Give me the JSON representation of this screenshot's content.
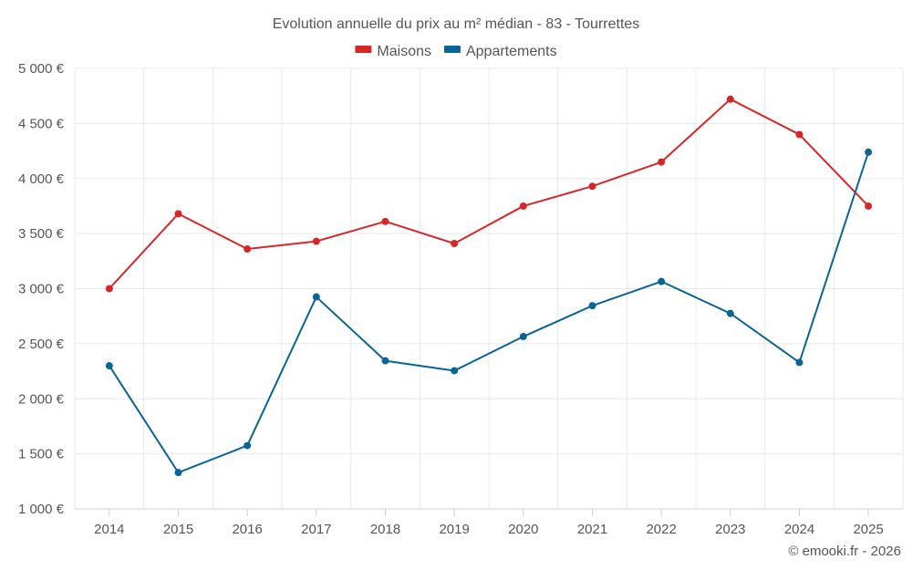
{
  "chart_data": {
    "type": "line",
    "title": "Evolution annuelle du prix au m² médian - 83 - Tourrettes",
    "categories": [
      "2014",
      "2015",
      "2016",
      "2017",
      "2018",
      "2019",
      "2020",
      "2021",
      "2022",
      "2023",
      "2024",
      "2025"
    ],
    "series": [
      {
        "name": "Maisons",
        "color": "#d62728",
        "values": [
          3000,
          3680,
          3360,
          3430,
          3610,
          3410,
          3750,
          3930,
          4150,
          4720,
          4400,
          3750
        ]
      },
      {
        "name": "Appartements",
        "color": "#0b6496",
        "values": [
          2300,
          1330,
          1575,
          2925,
          2345,
          2255,
          2565,
          2845,
          3065,
          2775,
          2330,
          4240
        ]
      }
    ],
    "ylim": [
      1000,
      5000
    ],
    "yticks": [
      1000,
      1500,
      2000,
      2500,
      3000,
      3500,
      4000,
      4500,
      5000
    ],
    "ytick_labels": [
      "1 000 €",
      "1 500 €",
      "2 000 €",
      "2 500 €",
      "3 000 €",
      "3 500 €",
      "4 000 €",
      "4 500 €",
      "5 000 €"
    ],
    "xlabel": "",
    "ylabel": "",
    "grid": true,
    "legend_position": "top-center"
  },
  "credit": "© emooki.fr - 2026"
}
